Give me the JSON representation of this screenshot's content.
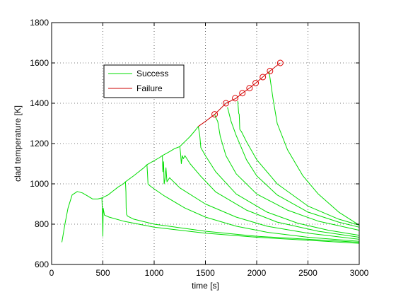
{
  "chart_data": {
    "type": "line",
    "xlabel": "time [s]",
    "ylabel": "clad temperature [K]",
    "xlim": [
      0,
      3000
    ],
    "ylim": [
      600,
      1800
    ],
    "xticks": [
      0,
      500,
      1000,
      1500,
      2000,
      2500,
      3000
    ],
    "yticks": [
      600,
      800,
      1000,
      1200,
      1400,
      1600,
      1800
    ],
    "grid": "dotted",
    "legend": {
      "placement": "upper-left-inset",
      "entries": [
        "Success",
        "Failure"
      ]
    },
    "colors": {
      "success": "#00dd00",
      "failure": "#cc0000",
      "marker": "#dd0000"
    },
    "series": [
      {
        "name": "Success",
        "color": "#00dd00",
        "lines": [
          [
            [
              100,
              710
            ],
            [
              130,
              800
            ],
            [
              160,
              880
            ],
            [
              200,
              945
            ],
            [
              250,
              962
            ],
            [
              300,
              955
            ],
            [
              350,
              940
            ],
            [
              400,
              925
            ],
            [
              450,
              925
            ],
            [
              490,
              930
            ],
            [
              495,
              860
            ],
            [
              500,
              740
            ],
            [
              503,
              880
            ],
            [
              515,
              845
            ],
            [
              560,
              835
            ],
            [
              700,
              815
            ],
            [
              1000,
              785
            ],
            [
              1500,
              755
            ],
            [
              2000,
              735
            ],
            [
              2500,
              720
            ],
            [
              3000,
              705
            ]
          ],
          [
            [
              490,
              930
            ],
            [
              550,
              945
            ],
            [
              600,
              965
            ],
            [
              650,
              985
            ],
            [
              700,
              1000
            ],
            [
              720,
              1010
            ],
            [
              725,
              960
            ],
            [
              727,
              880
            ],
            [
              730,
              850
            ],
            [
              740,
              840
            ],
            [
              800,
              825
            ],
            [
              1000,
              800
            ],
            [
              1500,
              765
            ],
            [
              2000,
              740
            ],
            [
              2500,
              725
            ],
            [
              3000,
              710
            ]
          ],
          [
            [
              720,
              1010
            ],
            [
              800,
              1040
            ],
            [
              850,
              1060
            ],
            [
              900,
              1080
            ],
            [
              930,
              1095
            ],
            [
              935,
              1050
            ],
            [
              940,
              1000
            ],
            [
              960,
              990
            ],
            [
              1000,
              975
            ],
            [
              1100,
              940
            ],
            [
              1300,
              880
            ],
            [
              1500,
              835
            ],
            [
              1800,
              790
            ],
            [
              2100,
              760
            ],
            [
              2500,
              735
            ],
            [
              3000,
              715
            ]
          ],
          [
            [
              930,
              1095
            ],
            [
              1000,
              1115
            ],
            [
              1050,
              1130
            ],
            [
              1080,
              1140
            ],
            [
              1085,
              1060
            ],
            [
              1092,
              1110
            ],
            [
              1097,
              1000
            ],
            [
              1105,
              1020
            ],
            [
              1115,
              1080
            ],
            [
              1125,
              1010
            ],
            [
              1150,
              1030
            ],
            [
              1250,
              980
            ],
            [
              1500,
              900
            ],
            [
              1800,
              835
            ],
            [
              2100,
              790
            ],
            [
              2500,
              755
            ],
            [
              3000,
              725
            ]
          ],
          [
            [
              1080,
              1140
            ],
            [
              1150,
              1160
            ],
            [
              1200,
              1175
            ],
            [
              1250,
              1185
            ],
            [
              1258,
              1150
            ],
            [
              1265,
              1100
            ],
            [
              1275,
              1140
            ],
            [
              1285,
              1125
            ],
            [
              1300,
              1140
            ],
            [
              1350,
              1100
            ],
            [
              1450,
              1040
            ],
            [
              1600,
              960
            ],
            [
              1900,
              870
            ],
            [
              2200,
              810
            ],
            [
              2600,
              765
            ],
            [
              3000,
              735
            ]
          ],
          [
            [
              1250,
              1185
            ],
            [
              1300,
              1210
            ],
            [
              1350,
              1235
            ],
            [
              1400,
              1265
            ],
            [
              1430,
              1285
            ],
            [
              1445,
              1240
            ],
            [
              1455,
              1180
            ],
            [
              1500,
              1140
            ],
            [
              1600,
              1060
            ],
            [
              1800,
              950
            ],
            [
              2100,
              860
            ],
            [
              2400,
              805
            ],
            [
              2700,
              770
            ],
            [
              3000,
              745
            ]
          ],
          [
            [
              1590,
              1345
            ],
            [
              1600,
              1330
            ],
            [
              1620,
              1310
            ],
            [
              1645,
              1235
            ],
            [
              1700,
              1140
            ],
            [
              1800,
              1050
            ],
            [
              2000,
              950
            ],
            [
              2300,
              870
            ],
            [
              2600,
              815
            ],
            [
              3000,
              770
            ]
          ],
          [
            [
              1715,
              1380
            ],
            [
              1750,
              1310
            ],
            [
              1800,
              1240
            ],
            [
              1900,
              1120
            ],
            [
              2000,
              1040
            ],
            [
              2200,
              945
            ],
            [
              2500,
              860
            ],
            [
              2800,
              810
            ],
            [
              3000,
              785
            ]
          ],
          [
            [
              1815,
              1410
            ],
            [
              1825,
              1350
            ],
            [
              1830,
              1345
            ],
            [
              1835,
              1270
            ],
            [
              1850,
              1260
            ],
            [
              1900,
              1210
            ],
            [
              2000,
              1120
            ],
            [
              2200,
              1000
            ],
            [
              2500,
              890
            ],
            [
              2800,
              825
            ],
            [
              3000,
              795
            ]
          ],
          [
            [
              2120,
              1560
            ],
            [
              2160,
              1420
            ],
            [
              2200,
              1300
            ],
            [
              2300,
              1170
            ],
            [
              2450,
              1040
            ],
            [
              2600,
              950
            ],
            [
              2800,
              860
            ],
            [
              3000,
              795
            ]
          ]
        ]
      },
      {
        "name": "Failure",
        "color": "#cc0000",
        "line": [
          [
            1430,
            1285
          ],
          [
            1500,
            1310
          ],
          [
            1590,
            1345
          ],
          [
            1700,
            1400
          ],
          [
            1800,
            1425
          ],
          [
            1860,
            1450
          ],
          [
            1930,
            1475
          ],
          [
            1990,
            1500
          ],
          [
            2060,
            1530
          ],
          [
            2130,
            1560
          ],
          [
            2230,
            1600
          ]
        ],
        "markers": [
          [
            1590,
            1345
          ],
          [
            1700,
            1400
          ],
          [
            1790,
            1425
          ],
          [
            1860,
            1450
          ],
          [
            1930,
            1475
          ],
          [
            1990,
            1500
          ],
          [
            2060,
            1530
          ],
          [
            2130,
            1560
          ],
          [
            2230,
            1600
          ]
        ]
      }
    ]
  }
}
